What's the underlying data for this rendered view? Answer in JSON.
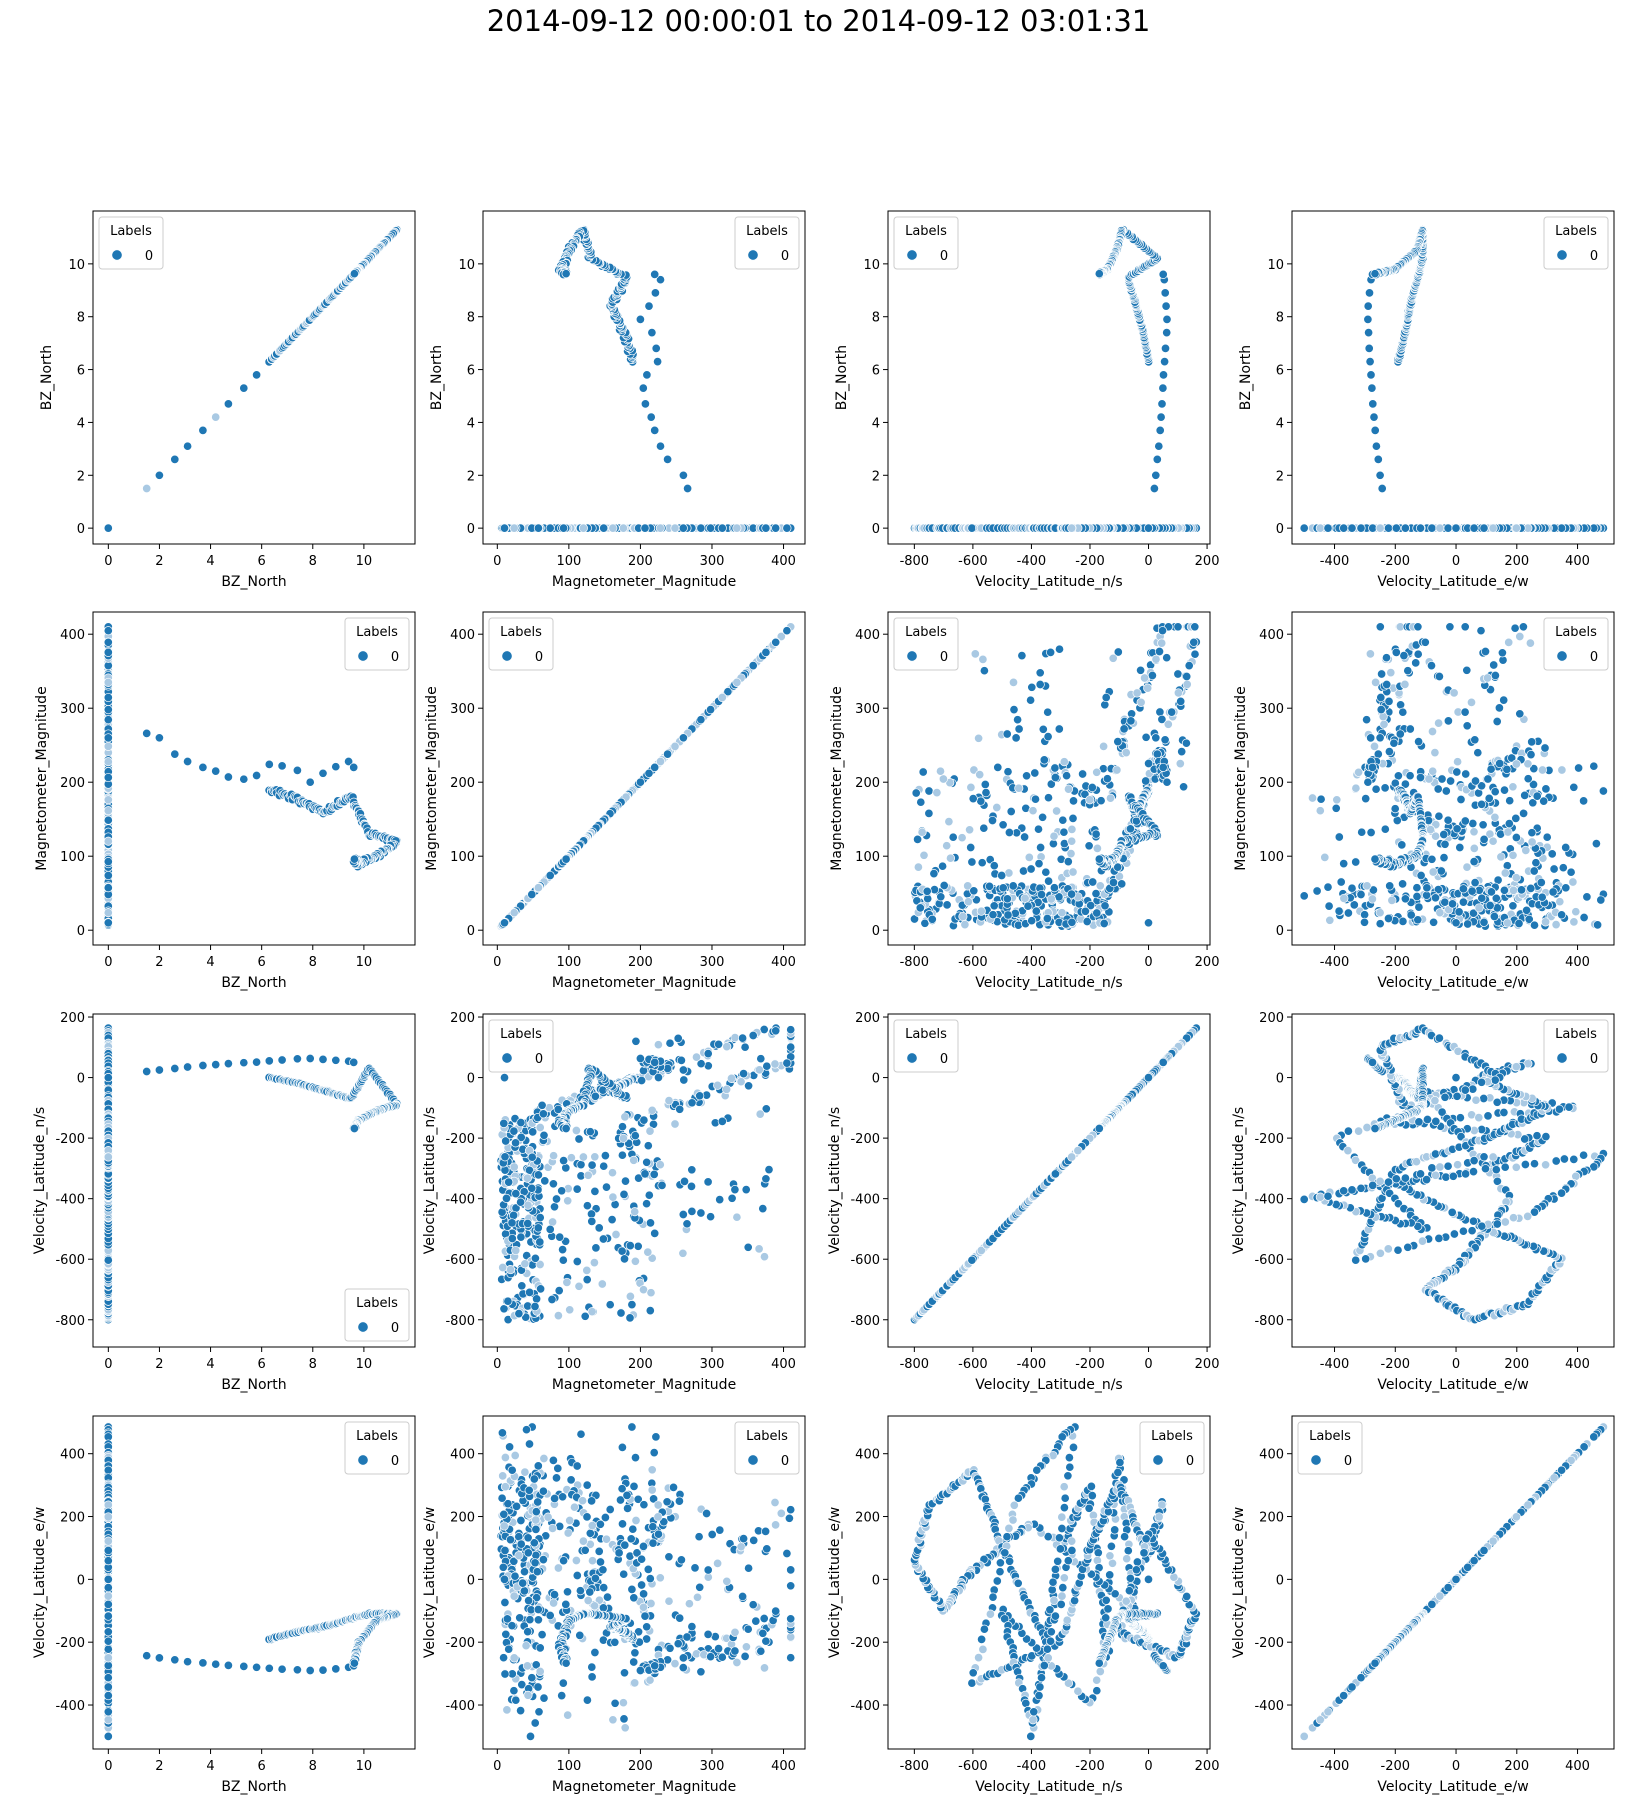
{
  "title": "2014-09-12 00:00:01 to 2014-09-12 03:01:31",
  "legend_title": "Labels",
  "legend_label": "0",
  "colors": {
    "point": "#1f77b4",
    "point_light": "#a9c9e3",
    "edge": "#ffffff",
    "axes": "#000000"
  },
  "variables": [
    {
      "key": "bz",
      "label": "BZ_North",
      "range": [
        -0.6,
        12.0
      ],
      "ticks": [
        0,
        2,
        4,
        6,
        8,
        10
      ]
    },
    {
      "key": "mag",
      "label": "Magnetometer_Magnitude",
      "range": [
        -20,
        430
      ],
      "ticks": [
        0,
        100,
        200,
        300,
        400
      ]
    },
    {
      "key": "vns",
      "label": "Velocity_Latitude_n/s",
      "range": [
        -890,
        210
      ],
      "ticks": [
        -800,
        -600,
        -400,
        -200,
        0,
        200
      ]
    },
    {
      "key": "vew",
      "label": "Velocity_Latitude_e/w",
      "range": [
        -540,
        520
      ],
      "ticks": [
        -400,
        -200,
        0,
        200,
        400
      ]
    }
  ],
  "chart_data": {
    "type": "scatter",
    "title": "2014-09-12 00:00:01 to 2014-09-12 03:01:31",
    "layout": "4x4 pair grid",
    "hue": "Labels",
    "series": [
      {
        "name": "0"
      }
    ],
    "legend_positions": [
      [
        "top-left",
        "top-right",
        "top-left",
        "top-right"
      ],
      [
        "top-right",
        "top-left",
        "top-left",
        "top-right"
      ],
      [
        "bottom-right",
        "top-left",
        "top-left",
        "top-right"
      ],
      [
        "top-right",
        "top-right",
        "top-right",
        "top-left"
      ]
    ],
    "transition_points": [
      {
        "bz": 1.5,
        "mag": 266,
        "vns": 20,
        "vew": -243
      },
      {
        "bz": 2.0,
        "mag": 260,
        "vns": 25,
        "vew": -250
      },
      {
        "bz": 2.6,
        "mag": 238,
        "vns": 30,
        "vew": -256
      },
      {
        "bz": 3.1,
        "mag": 228,
        "vns": 35,
        "vew": -262
      },
      {
        "bz": 3.7,
        "mag": 220,
        "vns": 40,
        "vew": -266
      },
      {
        "bz": 4.2,
        "mag": 215,
        "vns": 43,
        "vew": -270
      },
      {
        "bz": 4.7,
        "mag": 207,
        "vns": 46,
        "vew": -274
      },
      {
        "bz": 5.3,
        "mag": 204,
        "vns": 49,
        "vew": -277
      },
      {
        "bz": 5.8,
        "mag": 209,
        "vns": 51,
        "vew": -280
      },
      {
        "bz": 6.3,
        "mag": 224,
        "vns": 55,
        "vew": -283
      },
      {
        "bz": 6.8,
        "mag": 222,
        "vns": 58,
        "vew": -286
      },
      {
        "bz": 7.4,
        "mag": 216,
        "vns": 62,
        "vew": -288
      },
      {
        "bz": 7.9,
        "mag": 200,
        "vns": 63,
        "vew": -290
      },
      {
        "bz": 8.4,
        "mag": 212,
        "vns": 60,
        "vew": -289
      },
      {
        "bz": 8.9,
        "mag": 221,
        "vns": 57,
        "vew": -285
      },
      {
        "bz": 9.4,
        "mag": 228,
        "vns": 54,
        "vew": -280
      },
      {
        "bz": 9.6,
        "mag": 220,
        "vns": 50,
        "vew": -275
      }
    ],
    "loop_vertices": [
      {
        "bz": 6.3,
        "mag": 190,
        "vns": 0,
        "vew": -190
      },
      {
        "bz": 7.5,
        "mag": 175,
        "vns": -20,
        "vew": -165
      },
      {
        "bz": 8.5,
        "mag": 160,
        "vns": -45,
        "vew": -150
      },
      {
        "bz": 9.5,
        "mag": 180,
        "vns": -70,
        "vew": -125
      },
      {
        "bz": 10.2,
        "mag": 130,
        "vns": 30,
        "vew": -110
      },
      {
        "bz": 11.3,
        "mag": 120,
        "vns": -90,
        "vew": -110
      },
      {
        "bz": 10.5,
        "mag": 100,
        "vns": -110,
        "vew": -130
      },
      {
        "bz": 9.8,
        "mag": 90,
        "vns": -140,
        "vew": -200
      },
      {
        "bz": 9.6,
        "mag": 95,
        "vns": -170,
        "vew": -270
      }
    ],
    "zero_bz_ranges": {
      "mag": [
        5,
        410
      ],
      "vns": [
        -840,
        165
      ],
      "vew": [
        -500,
        485
      ]
    },
    "vns_vew_path_vertices": [
      [
        -400,
        -500
      ],
      [
        -300,
        100
      ],
      [
        -200,
        300
      ],
      [
        -150,
        -200
      ],
      [
        -100,
        400
      ],
      [
        -50,
        -100
      ],
      [
        -400,
        180
      ],
      [
        -600,
        30
      ],
      [
        -700,
        -100
      ],
      [
        -800,
        50
      ],
      [
        -750,
        230
      ],
      [
        -600,
        350
      ],
      [
        -500,
        100
      ],
      [
        -350,
        -200
      ],
      [
        -250,
        500
      ],
      [
        -450,
        250
      ],
      [
        -600,
        -330
      ],
      [
        -300,
        -200
      ],
      [
        -200,
        100
      ],
      [
        -100,
        300
      ],
      [
        0,
        80
      ],
      [
        50,
        250
      ],
      [
        -100,
        -170
      ],
      [
        100,
        -250
      ],
      [
        160,
        -110
      ],
      [
        0,
        150
      ],
      [
        -200,
        -400
      ],
      [
        -500,
        -100
      ],
      [
        -400,
        -460
      ],
      [
        -250,
        150
      ]
    ]
  }
}
